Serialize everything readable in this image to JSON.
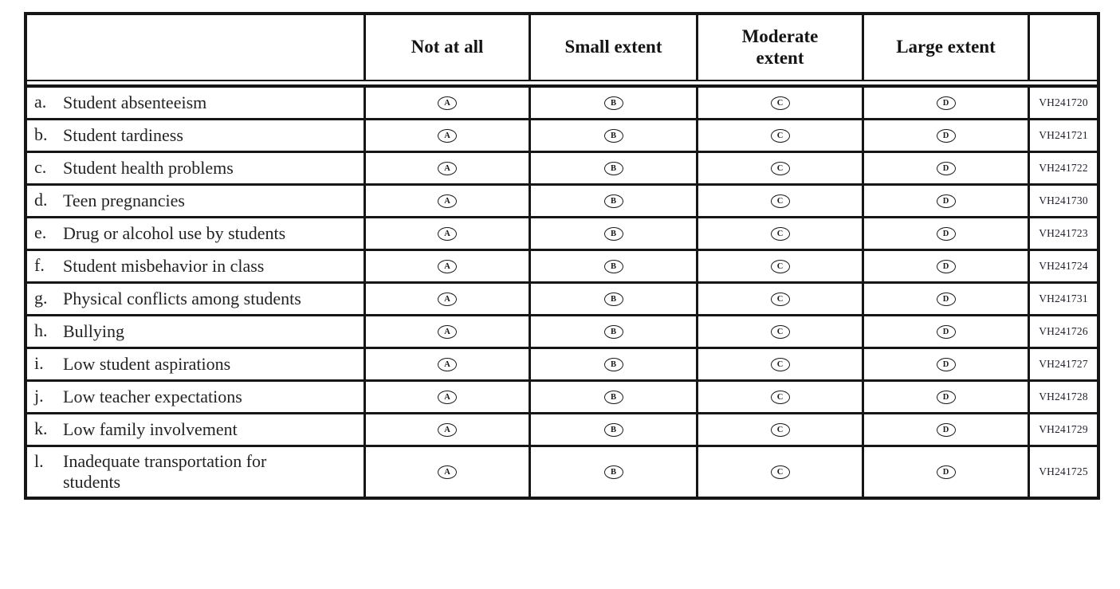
{
  "page": {
    "background": "#ffffff",
    "border_color": "#161616",
    "text_color": "#1f1f1f"
  },
  "table": {
    "header": {
      "row_label_header": "",
      "columns": [
        "Not at all",
        "Small extent",
        "Moderate extent",
        "Large extent"
      ],
      "code_column_header": ""
    },
    "choice_letters": [
      "A",
      "B",
      "C",
      "D"
    ],
    "rows": [
      {
        "prefix": "a.",
        "label": "Student absenteeism",
        "code": "VH241720"
      },
      {
        "prefix": "b.",
        "label": "Student tardiness",
        "code": "VH241721"
      },
      {
        "prefix": "c.",
        "label": "Student health problems",
        "code": "VH241722"
      },
      {
        "prefix": "d.",
        "label": "Teen pregnancies",
        "code": "VH241730"
      },
      {
        "prefix": "e.",
        "label": "Drug or alcohol use by students",
        "code": "VH241723"
      },
      {
        "prefix": "f.",
        "label": "Student misbehavior in class",
        "code": "VH241724"
      },
      {
        "prefix": "g.",
        "label": "Physical conflicts among students",
        "code": "VH241731"
      },
      {
        "prefix": "h.",
        "label": "Bullying",
        "code": "VH241726"
      },
      {
        "prefix": "i.",
        "label": "Low student aspirations",
        "code": "VH241727"
      },
      {
        "prefix": "j.",
        "label": "Low teacher expectations",
        "code": "VH241728"
      },
      {
        "prefix": "k.",
        "label": "Low family involvement",
        "code": "VH241729"
      },
      {
        "prefix": "l.",
        "label": "Inadequate transportation for students",
        "code": "VH241725"
      }
    ]
  }
}
